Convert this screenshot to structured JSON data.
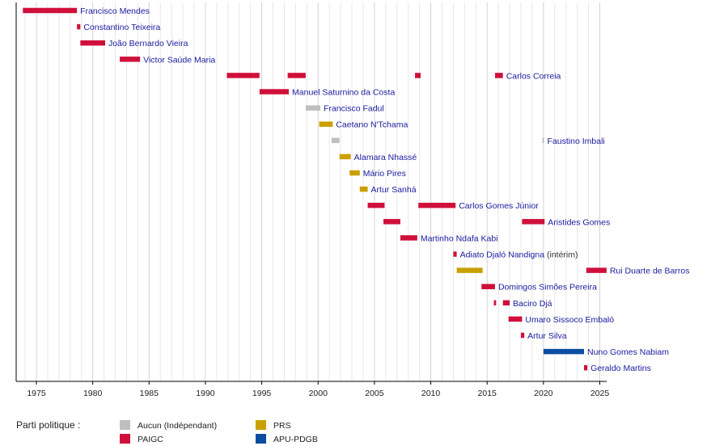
{
  "chart_data": {
    "type": "bar",
    "orientation": "horizontal-timeline",
    "x_ticks": [
      1975,
      1980,
      1985,
      1990,
      1995,
      2000,
      2005,
      2010,
      2015,
      2020,
      2025
    ],
    "xlim": [
      1973,
      2026
    ],
    "grid": "vertical, yearly",
    "colors": {
      "Aucun": "#bfbfbf",
      "PAIGC": "#d0103a",
      "PRS": "#c9a000",
      "APU": "#0b4da2",
      "label": "#1a1a9e",
      "note": "#333333"
    },
    "rows": [
      {
        "label": "Francisco Mendes",
        "segments": [
          {
            "start": 1973.8,
            "end": 1978.6,
            "party": "PAIGC"
          }
        ]
      },
      {
        "label": "Constantino Teixeira",
        "segments": [
          {
            "start": 1978.6,
            "end": 1978.9,
            "party": "PAIGC"
          }
        ]
      },
      {
        "label": "João Bernardo Vieira",
        "segments": [
          {
            "start": 1978.9,
            "end": 1981.1,
            "party": "PAIGC"
          }
        ]
      },
      {
        "label": "Victor Saúde Maria",
        "segments": [
          {
            "start": 1982.4,
            "end": 1984.2,
            "party": "PAIGC"
          }
        ]
      },
      {
        "label": "Carlos Correia",
        "segments": [
          {
            "start": 1991.9,
            "end": 1994.8,
            "party": "PAIGC"
          },
          {
            "start": 1997.3,
            "end": 1998.9,
            "party": "PAIGC"
          },
          {
            "start": 2008.6,
            "end": 2009.1,
            "party": "PAIGC"
          },
          {
            "start": 2015.7,
            "end": 2016.4,
            "party": "PAIGC"
          }
        ]
      },
      {
        "label": "Manuel Saturnino da Costa",
        "segments": [
          {
            "start": 1994.8,
            "end": 1997.4,
            "party": "PAIGC"
          }
        ]
      },
      {
        "label": "Francisco Fadul",
        "segments": [
          {
            "start": 1998.9,
            "end": 2000.2,
            "party": "Aucun"
          }
        ]
      },
      {
        "label": "Caetano N'Tchama",
        "segments": [
          {
            "start": 2000.1,
            "end": 2001.3,
            "party": "PRS"
          }
        ]
      },
      {
        "label": "Faustino Imbali",
        "segments": [
          {
            "start": 2001.2,
            "end": 2001.9,
            "party": "Aucun"
          },
          {
            "start": 2019.9,
            "end": 2020.05,
            "party": "Aucun"
          }
        ]
      },
      {
        "label": "Alamara Nhassé",
        "segments": [
          {
            "start": 2001.9,
            "end": 2002.9,
            "party": "PRS"
          }
        ]
      },
      {
        "label": "Mário Pires",
        "segments": [
          {
            "start": 2002.8,
            "end": 2003.7,
            "party": "PRS"
          }
        ]
      },
      {
        "label": "Artur Sanhá",
        "segments": [
          {
            "start": 2003.7,
            "end": 2004.4,
            "party": "PRS"
          }
        ]
      },
      {
        "label": "Carlos Gomes Júnior",
        "segments": [
          {
            "start": 2004.4,
            "end": 2005.9,
            "party": "PAIGC"
          },
          {
            "start": 2008.9,
            "end": 2012.2,
            "party": "PAIGC"
          }
        ]
      },
      {
        "label": "Aristides Gomes",
        "segments": [
          {
            "start": 2005.8,
            "end": 2007.3,
            "party": "PAIGC"
          },
          {
            "start": 2018.1,
            "end": 2020.1,
            "party": "PAIGC"
          }
        ]
      },
      {
        "label": "Martinho Ndafa Kabi",
        "segments": [
          {
            "start": 2007.3,
            "end": 2008.8,
            "party": "PAIGC"
          }
        ]
      },
      {
        "label": "Adiato Djaló Nandigna",
        "note": "(intérim)",
        "segments": [
          {
            "start": 2012.0,
            "end": 2012.3,
            "party": "PAIGC"
          }
        ]
      },
      {
        "label": "Rui Duarte de Barros",
        "segments": [
          {
            "start": 2012.3,
            "end": 2014.6,
            "party": "PRS"
          },
          {
            "start": 2023.8,
            "end": 2025.6,
            "party": "PAIGC"
          }
        ]
      },
      {
        "label": "Domingos Simões Pereira",
        "segments": [
          {
            "start": 2014.5,
            "end": 2015.7,
            "party": "PAIGC"
          }
        ]
      },
      {
        "label": "Baciro Djá",
        "segments": [
          {
            "start": 2015.6,
            "end": 2015.8,
            "party": "PAIGC"
          },
          {
            "start": 2016.4,
            "end": 2017.0,
            "party": "PAIGC"
          }
        ]
      },
      {
        "label": "Umaro Sissoco Embaló",
        "segments": [
          {
            "start": 2016.9,
            "end": 2018.1,
            "party": "PAIGC"
          }
        ]
      },
      {
        "label": "Artur Silva",
        "segments": [
          {
            "start": 2018.0,
            "end": 2018.3,
            "party": "PAIGC"
          }
        ]
      },
      {
        "label": "Nuno Gomes Nabiam",
        "segments": [
          {
            "start": 2020.0,
            "end": 2023.6,
            "party": "APU"
          }
        ]
      },
      {
        "label": "Geraldo Martins",
        "segments": [
          {
            "start": 2023.6,
            "end": 2023.9,
            "party": "PAIGC"
          }
        ]
      }
    ],
    "legend": {
      "title": "Parti politique :",
      "entries": [
        {
          "key": "Aucun",
          "label": "Aucun (Indépendant)"
        },
        {
          "key": "PAIGC",
          "label": "PAIGC"
        },
        {
          "key": "PRS",
          "label": "PRS"
        },
        {
          "key": "APU",
          "label": "APU-PDGB"
        }
      ]
    }
  }
}
